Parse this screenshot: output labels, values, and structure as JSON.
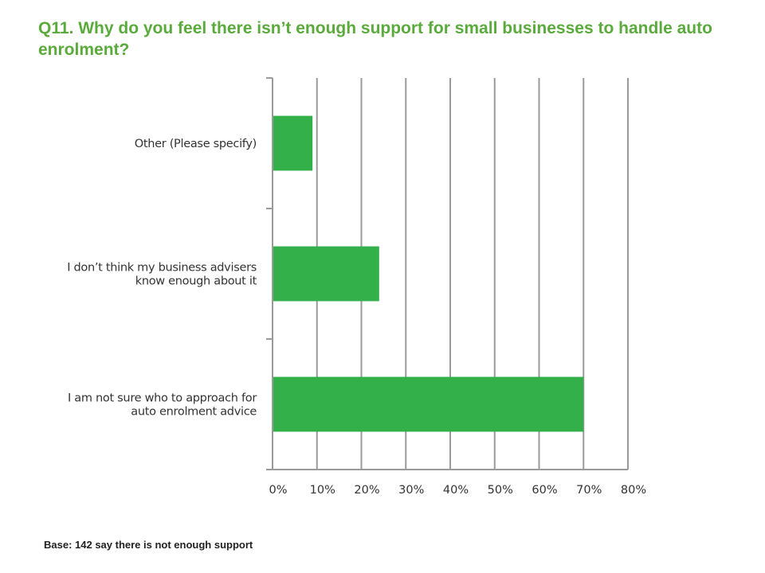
{
  "title": "Q11. Why do you feel there isn’t enough support for small businesses to handle auto enrolment?",
  "footnote": "Base: 142 say there is not enough support",
  "chart_data": {
    "type": "bar",
    "orientation": "horizontal",
    "categories": [
      [
        "Other (Please specify)"
      ],
      [
        "I don’t think my business advisers",
        "know enough about it"
      ],
      [
        "I am not sure who to approach for",
        "auto enrolment advice"
      ]
    ],
    "values": [
      9,
      24,
      70
    ],
    "xlim": [
      0,
      80
    ],
    "xticks": [
      "0%",
      "10%",
      "20%",
      "30%",
      "40%",
      "50%",
      "60%",
      "70%",
      "80%"
    ],
    "grid": "vertical",
    "bar_color": "#33b04a",
    "legend": "none",
    "title": "",
    "xlabel": "",
    "ylabel": ""
  }
}
